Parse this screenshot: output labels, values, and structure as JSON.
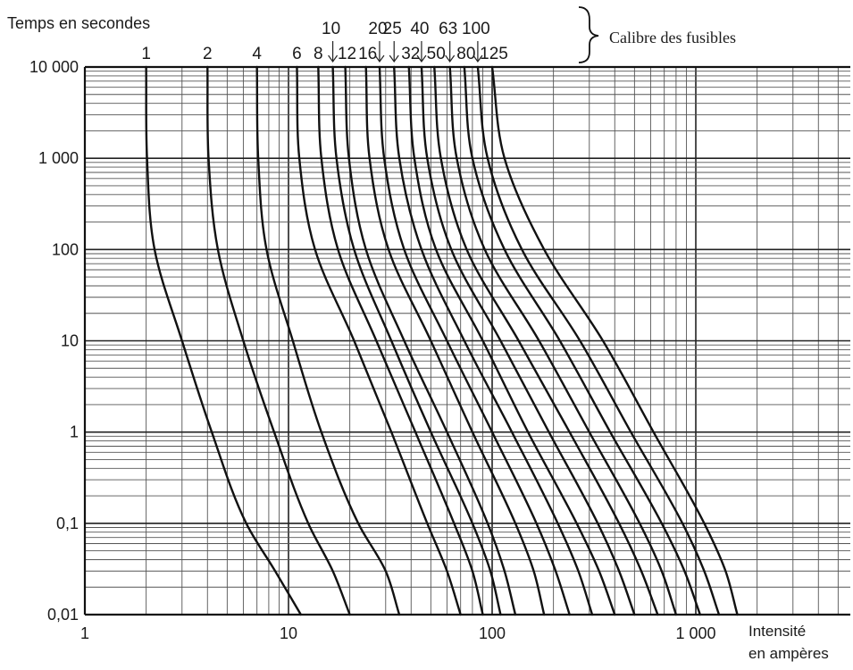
{
  "chart_data": {
    "type": "line",
    "x_scale": "log",
    "y_scale": "log",
    "xlim": [
      1,
      2000
    ],
    "ylim": [
      0.01,
      10000
    ],
    "grid": true,
    "ylabel": "Temps en secondes",
    "xlabel_line1": "Intensité",
    "xlabel_line2": "en ampères",
    "rating_group_label": "Calibre des fusibles",
    "x_ticks": [
      {
        "value": 1,
        "label": "1"
      },
      {
        "value": 10,
        "label": "10"
      },
      {
        "value": 100,
        "label": "100"
      },
      {
        "value": 1000,
        "label": "1 000"
      }
    ],
    "y_ticks": [
      {
        "value": 10000,
        "label": "10 000"
      },
      {
        "value": 1000,
        "label": "1 000"
      },
      {
        "value": 100,
        "label": "100"
      },
      {
        "value": 10,
        "label": "10"
      },
      {
        "value": 1,
        "label": "1"
      },
      {
        "value": 0.1,
        "label": "0,1"
      },
      {
        "value": 0.01,
        "label": "0,01"
      }
    ],
    "series": [
      {
        "name": "1",
        "x": [
          2.0,
          2.02,
          2.2,
          3.0,
          4.2,
          6.2,
          8.6,
          11.5
        ],
        "y": [
          10000,
          1000,
          100,
          10,
          1,
          0.1,
          0.03,
          0.01
        ]
      },
      {
        "name": "2",
        "x": [
          4.0,
          4.05,
          4.5,
          6.0,
          8.5,
          12.5,
          16.5,
          20
        ],
        "y": [
          10000,
          1000,
          100,
          10,
          1,
          0.1,
          0.03,
          0.01
        ]
      },
      {
        "name": "4",
        "x": [
          7.0,
          7.1,
          7.8,
          10.5,
          14.5,
          22,
          30,
          35
        ],
        "y": [
          10000,
          1000,
          100,
          10,
          1,
          0.1,
          0.03,
          0.01
        ]
      },
      {
        "name": "6",
        "x": [
          11.0,
          11.3,
          13.5,
          21,
          32,
          48,
          60,
          70
        ],
        "y": [
          10000,
          1000,
          100,
          10,
          1,
          0.1,
          0.03,
          0.01
        ]
      },
      {
        "name": "8",
        "x": [
          14.0,
          14.5,
          17.5,
          27,
          42,
          65,
          80,
          90
        ],
        "y": [
          10000,
          1000,
          100,
          10,
          1,
          0.1,
          0.03,
          0.01
        ]
      },
      {
        "name": "10",
        "x": [
          16.5,
          17.2,
          21,
          32,
          50,
          80,
          98,
          110
        ],
        "y": [
          10000,
          1000,
          100,
          10,
          1,
          0.1,
          0.03,
          0.01
        ]
      },
      {
        "name": "12",
        "x": [
          19.0,
          19.8,
          24,
          37,
          60,
          95,
          115,
          130
        ],
        "y": [
          10000,
          1000,
          100,
          10,
          1,
          0.1,
          0.03,
          0.01
        ]
      },
      {
        "name": "16",
        "x": [
          24.0,
          25.0,
          31,
          50,
          80,
          130,
          160,
          180
        ],
        "y": [
          10000,
          1000,
          100,
          10,
          1,
          0.1,
          0.03,
          0.01
        ]
      },
      {
        "name": "20",
        "x": [
          28.0,
          29.5,
          37,
          60,
          100,
          165,
          205,
          240
        ],
        "y": [
          10000,
          1000,
          100,
          10,
          1,
          0.1,
          0.03,
          0.01
        ]
      },
      {
        "name": "25",
        "x": [
          33.0,
          35.0,
          45,
          73,
          125,
          210,
          265,
          310
        ],
        "y": [
          10000,
          1000,
          100,
          10,
          1,
          0.1,
          0.03,
          0.01
        ]
      },
      {
        "name": "32",
        "x": [
          39.0,
          41.5,
          53,
          90,
          150,
          260,
          335,
          400
        ],
        "y": [
          10000,
          1000,
          100,
          10,
          1,
          0.1,
          0.03,
          0.01
        ]
      },
      {
        "name": "40",
        "x": [
          45.0,
          48.0,
          63,
          110,
          190,
          330,
          420,
          500
        ],
        "y": [
          10000,
          1000,
          100,
          10,
          1,
          0.1,
          0.03,
          0.01
        ]
      },
      {
        "name": "50",
        "x": [
          52.0,
          56.0,
          75,
          135,
          240,
          420,
          540,
          650
        ],
        "y": [
          10000,
          1000,
          100,
          10,
          1,
          0.1,
          0.03,
          0.01
        ]
      },
      {
        "name": "63",
        "x": [
          62.0,
          67.0,
          92,
          170,
          300,
          530,
          680,
          800
        ],
        "y": [
          10000,
          1000,
          100,
          10,
          1,
          0.1,
          0.03,
          0.01
        ]
      },
      {
        "name": "80",
        "x": [
          73.0,
          80.0,
          115,
          215,
          380,
          680,
          880,
          1050
        ],
        "y": [
          10000,
          1000,
          100,
          10,
          1,
          0.1,
          0.03,
          0.01
        ]
      },
      {
        "name": "100",
        "x": [
          85.0,
          95.0,
          140,
          270,
          480,
          860,
          1100,
          1300
        ],
        "y": [
          10000,
          1000,
          100,
          10,
          1,
          0.1,
          0.03,
          0.01
        ]
      },
      {
        "name": "125",
        "x": [
          100.0,
          115.0,
          180,
          350,
          620,
          1100,
          1400,
          1600
        ],
        "y": [
          10000,
          1000,
          100,
          10,
          1,
          0.1,
          0.03,
          0.01
        ]
      }
    ]
  }
}
